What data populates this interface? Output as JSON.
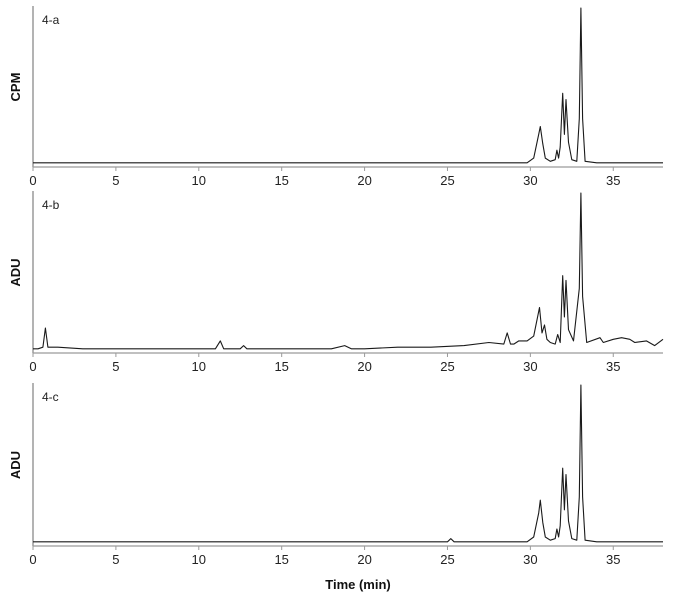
{
  "chart_data": [
    {
      "type": "line",
      "panel_label": "4-a",
      "ylabel": "CPM",
      "xlabel": "",
      "xlim": [
        0,
        38
      ],
      "ylim": [
        0,
        100
      ],
      "x_ticks": [
        0,
        5,
        10,
        15,
        20,
        25,
        30,
        35
      ],
      "series": [
        {
          "x": [
            0,
            2,
            4,
            6,
            8,
            10,
            12,
            14,
            16,
            18,
            20,
            22,
            24,
            26,
            28,
            29.8,
            30.2,
            30.5,
            30.6,
            30.75,
            30.9,
            31.2,
            31.5,
            31.6,
            31.7,
            31.8,
            31.95,
            32.05,
            32.15,
            32.3,
            32.5,
            32.8,
            32.95,
            33.05,
            33.15,
            33.3,
            34,
            35,
            36,
            37,
            38
          ],
          "y": [
            2,
            2,
            2,
            2,
            2,
            2,
            2,
            2,
            2,
            2,
            2,
            2,
            2,
            2,
            2,
            2,
            5,
            20,
            25,
            14,
            5,
            3,
            4,
            10,
            5,
            12,
            46,
            20,
            42,
            15,
            4,
            3,
            30,
            100,
            30,
            3,
            2,
            2,
            2,
            2,
            2
          ]
        }
      ]
    },
    {
      "type": "line",
      "panel_label": "4-b",
      "ylabel": "ADU",
      "xlabel": "",
      "xlim": [
        0,
        38
      ],
      "ylim": [
        0,
        100
      ],
      "x_ticks": [
        0,
        5,
        10,
        15,
        20,
        25,
        30,
        35
      ],
      "series": [
        {
          "x": [
            0,
            0.3,
            0.6,
            0.75,
            0.9,
            1.5,
            3,
            5,
            7,
            9,
            11,
            11.3,
            11.5,
            12.5,
            12.7,
            12.9,
            14,
            16,
            18,
            18.8,
            19.2,
            20,
            22,
            24,
            26,
            27.5,
            28.4,
            28.6,
            28.8,
            29,
            29.3,
            29.8,
            30.2,
            30.55,
            30.7,
            30.85,
            31.0,
            31.2,
            31.5,
            31.65,
            31.8,
            31.95,
            32.05,
            32.15,
            32.3,
            32.6,
            32.95,
            33.05,
            33.15,
            33.4,
            34.2,
            34.4,
            35,
            35.5,
            36,
            36.3,
            37,
            37.5,
            38
          ],
          "y": [
            2,
            2,
            3,
            15,
            3,
            3,
            2,
            2,
            2,
            2,
            2,
            7,
            2,
            2,
            4,
            2,
            2,
            2,
            2,
            4,
            2,
            2,
            3,
            3,
            4,
            6,
            5,
            12,
            5,
            5,
            7,
            7,
            10,
            28,
            12,
            17,
            8,
            6,
            5,
            11,
            6,
            48,
            22,
            45,
            14,
            7,
            40,
            100,
            35,
            6,
            9,
            6,
            8,
            9,
            8,
            6,
            7,
            4,
            8
          ]
        }
      ]
    },
    {
      "type": "line",
      "panel_label": "4-c",
      "ylabel": "ADU",
      "xlabel": "Time (min)",
      "xlim": [
        0,
        38
      ],
      "ylim": [
        0,
        100
      ],
      "x_ticks": [
        0,
        5,
        10,
        15,
        20,
        25,
        30,
        35
      ],
      "series": [
        {
          "x": [
            0,
            2,
            4,
            6,
            8,
            10,
            12,
            14,
            16,
            18,
            20,
            22,
            24,
            25,
            25.2,
            25.4,
            26,
            28,
            29.8,
            30.2,
            30.5,
            30.6,
            30.75,
            30.9,
            31.2,
            31.5,
            31.6,
            31.7,
            31.8,
            31.95,
            32.05,
            32.15,
            32.3,
            32.5,
            32.8,
            32.95,
            33.05,
            33.15,
            33.3,
            34,
            35,
            36,
            37,
            38
          ],
          "y": [
            2,
            2,
            2,
            2,
            2,
            2,
            2,
            2,
            2,
            2,
            2,
            2,
            2,
            2,
            4,
            2,
            2,
            2,
            2,
            5,
            20,
            28,
            14,
            5,
            3,
            4,
            10,
            5,
            12,
            48,
            22,
            44,
            15,
            4,
            3,
            30,
            100,
            30,
            3,
            2,
            2,
            2,
            2,
            2
          ]
        }
      ]
    }
  ]
}
